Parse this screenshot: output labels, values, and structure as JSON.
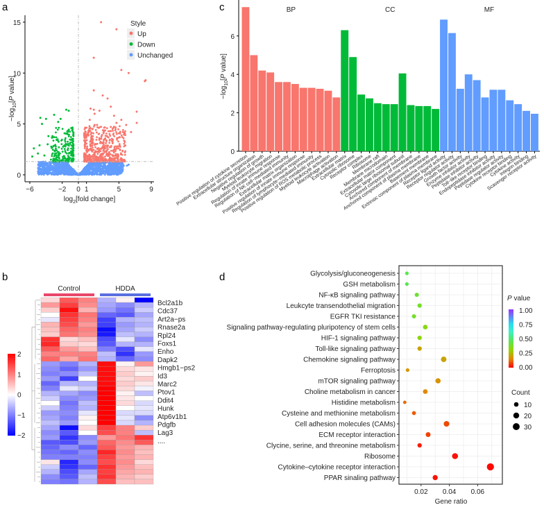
{
  "panels": {
    "a": "a",
    "b": "b",
    "c": "c",
    "d": "d"
  },
  "chart_data": [
    {
      "id": "volcano",
      "type": "scatter",
      "title": "",
      "xlabel": "log2[fold change]",
      "ylabel": "-log10[P value]",
      "xlim": [
        -6.5,
        9.5
      ],
      "ylim": [
        -0.5,
        15.8
      ],
      "xticks": [
        -6,
        -2,
        0,
        1,
        5,
        9
      ],
      "yticks": [
        0,
        5,
        10,
        15
      ],
      "threshold_y": 1.3,
      "legend": {
        "title": "Style",
        "position": "top-right",
        "entries": [
          {
            "label": "Up",
            "color": "#F8766D"
          },
          {
            "label": "Down",
            "color": "#00BA38"
          },
          {
            "label": "Unchanged",
            "color": "#619CFF"
          }
        ]
      },
      "highlight_points": {
        "Up": [
          [
            2.8,
            15.0
          ],
          [
            4.7,
            14.3
          ],
          [
            1.9,
            11.5
          ],
          [
            5.3,
            10.3
          ],
          [
            6.2,
            10.0
          ],
          [
            8.2,
            9.2
          ],
          [
            8.3,
            9.3
          ],
          [
            1.9,
            8.3
          ],
          [
            3.0,
            7.8
          ],
          [
            3.6,
            7.5
          ],
          [
            4.0,
            6.7
          ],
          [
            1.5,
            6.5
          ],
          [
            1.9,
            6.4
          ],
          [
            2.6,
            6.3
          ],
          [
            7.2,
            6.2
          ],
          [
            2.0,
            6.0
          ],
          [
            4.4,
            5.8
          ],
          [
            4.7,
            5.1
          ],
          [
            1.4,
            5.4
          ],
          [
            5.3,
            5.4
          ],
          [
            5.9,
            4.9
          ],
          [
            7.2,
            5.1
          ],
          [
            2.0,
            4.9
          ],
          [
            2.3,
            4.9
          ],
          [
            4.0,
            4.7
          ],
          [
            6.5,
            4.2
          ],
          [
            5.5,
            4.2
          ]
        ],
        "Down": [
          [
            -4.7,
            5.6
          ],
          [
            -3.0,
            5.9
          ],
          [
            -1.5,
            6.4
          ],
          [
            -1.2,
            6.3
          ],
          [
            -4.0,
            5.5
          ],
          [
            -4.5,
            5.0
          ],
          [
            -2.2,
            5.5
          ],
          [
            -2.5,
            5.2
          ],
          [
            -4.8,
            2.9
          ],
          [
            -5.5,
            2.6
          ],
          [
            -5.0,
            2.1
          ],
          [
            -5.7,
            1.8
          ],
          [
            -3.7,
            3.8
          ],
          [
            -3.8,
            3.0
          ],
          [
            -4.2,
            1.9
          ],
          [
            -3.2,
            3.8
          ]
        ],
        "Unchanged": [
          [
            5.6,
            0.9
          ],
          [
            6.2,
            1.0
          ],
          [
            6.0,
            0.9
          ],
          [
            5.2,
            0.7
          ]
        ]
      }
    },
    {
      "id": "heatmap",
      "type": "heatmap",
      "groups": [
        {
          "label": "Control",
          "color": "#E8476A"
        },
        {
          "label": "HDDA",
          "color": "#5B6EE0"
        }
      ],
      "samples_per_group": 3,
      "gene_labels": [
        "Bcl2a1b",
        "Cdc37",
        "Art2a−ps",
        "Rnase2a",
        "Rpl24",
        "Foxs1",
        "Enho",
        "Dapk2",
        "Hmgb1−ps2",
        "Id3",
        "Marc2",
        "Ptov1",
        "Ddit4",
        "Hunk",
        "Atp6v1b1",
        "Pdgfb",
        "Lag3",
        "...."
      ],
      "color_scale": {
        "min": -2,
        "max": 2,
        "ticks": [
          "2",
          "1",
          "0",
          "−1",
          "−2"
        ]
      },
      "values": [
        [
          0.3,
          1.3,
          1.0,
          -0.6,
          0.1,
          -2.0
        ],
        [
          0.8,
          1.5,
          0.9,
          -0.7,
          -0.9,
          -0.6
        ],
        [
          0.4,
          1.9,
          0.6,
          -0.8,
          -1.1,
          -0.4
        ],
        [
          0.0,
          1.6,
          1.1,
          -1.2,
          -1.3,
          -0.7
        ],
        [
          -0.2,
          1.5,
          1.0,
          -1.5,
          -0.6,
          -0.5
        ],
        [
          0.6,
          1.4,
          0.8,
          -1.5,
          -0.8,
          -0.6
        ],
        [
          0.5,
          1.2,
          1.0,
          -1.9,
          -0.7,
          -0.4
        ],
        [
          0.4,
          1.1,
          0.9,
          -1.8,
          -0.5,
          -0.6
        ],
        [
          1.6,
          0.3,
          0.5,
          -1.4,
          -0.2,
          -0.9
        ],
        [
          1.7,
          0.4,
          0.3,
          -1.3,
          -0.6,
          -0.6
        ],
        [
          1.3,
          0.8,
          0.5,
          -1.0,
          -1.4,
          -0.2
        ],
        [
          1.0,
          1.0,
          1.0,
          -0.5,
          -1.6,
          -0.8
        ],
        [
          1.2,
          0.7,
          1.1,
          -0.6,
          -1.2,
          -0.9
        ],
        [
          -0.8,
          -1.0,
          -0.6,
          1.9,
          0.1,
          0.8
        ],
        [
          -0.9,
          -1.2,
          -0.8,
          1.9,
          0.3,
          0.2
        ],
        [
          -1.0,
          -0.9,
          -0.5,
          1.9,
          0.4,
          0.1
        ],
        [
          -0.8,
          -1.5,
          0.0,
          1.9,
          0.3,
          0.4
        ],
        [
          -1.2,
          -0.6,
          -0.6,
          1.9,
          0.4,
          0.2
        ],
        [
          -1.0,
          -0.2,
          -0.4,
          2.0,
          0.3,
          -0.1
        ],
        [
          -0.6,
          -0.7,
          -0.9,
          2.0,
          0.1,
          -0.5
        ],
        [
          -0.4,
          -0.9,
          -0.8,
          2.0,
          0.2,
          0.0
        ],
        [
          0.0,
          -1.1,
          -0.5,
          2.0,
          0.3,
          -0.3
        ],
        [
          -0.4,
          -1.0,
          -0.6,
          2.0,
          0.0,
          -0.2
        ],
        [
          -0.8,
          -0.9,
          -0.2,
          2.0,
          -0.3,
          -0.3
        ],
        [
          -0.7,
          -1.0,
          0.1,
          2.0,
          -0.2,
          -0.9
        ],
        [
          -0.5,
          -0.8,
          0.0,
          2.0,
          -0.3,
          -0.6
        ],
        [
          -0.7,
          -1.9,
          0.3,
          1.5,
          1.0,
          0.4
        ],
        [
          -0.9,
          -1.3,
          0.0,
          1.4,
          1.0,
          -0.5
        ],
        [
          -0.8,
          -1.6,
          -0.9,
          0.8,
          1.1,
          1.6
        ],
        [
          -1.3,
          -1.4,
          -0.8,
          1.2,
          0.9,
          1.3
        ],
        [
          -1.2,
          -0.9,
          -1.2,
          1.3,
          0.8,
          0.6
        ],
        [
          -1.1,
          -1.2,
          -0.9,
          1.7,
          0.9,
          0.5
        ],
        [
          -1.0,
          -1.0,
          -1.0,
          1.5,
          0.8,
          0.6
        ],
        [
          0.2,
          -1.7,
          -0.9,
          1.4,
          0.9,
          0.3
        ],
        [
          -0.4,
          -1.6,
          -1.2,
          1.6,
          0.8,
          0.5
        ],
        [
          -0.6,
          -1.4,
          -0.7,
          1.5,
          0.7,
          0.6
        ],
        [
          -0.9,
          -1.3,
          -0.5,
          1.6,
          0.6,
          0.4
        ],
        [
          -1.0,
          -1.1,
          -0.6,
          1.4,
          0.5,
          0.5
        ]
      ]
    },
    {
      "id": "go-bar",
      "type": "bar",
      "ylabel": "-log10[P value]",
      "ylim": [
        0,
        7.8
      ],
      "yticks": [
        0,
        2,
        4,
        6
      ],
      "series": [
        {
          "name": "BP",
          "color": "#F8766D",
          "categories": [
            "Positive regulation of cytokine secretion",
            "Extracellular structure organization",
            "Negative regulation of growth",
            "Myeloid leukocyte migration",
            "Regulation of innate immune response",
            "Regulation of NK cell−mediated immunity",
            "Extracellular matrix organization",
            "Positive regulation of innate immune response",
            "Regulation of lymphocyte−mediated immunity",
            "Positive regulation of ROS metabolic process",
            "Myeloid leukocyte activation",
            "Macrophage activation"
          ],
          "values": [
            7.5,
            5.0,
            4.2,
            4.1,
            3.6,
            3.6,
            3.5,
            3.3,
            3.3,
            3.25,
            3.15,
            2.8
          ]
        },
        {
          "name": "CC",
          "color": "#00BA38",
          "categories": [
            "Extracellular matrix",
            "Cytosolic ribosome",
            "Receptor complex",
            "Ribosome",
            "Membrane raft",
            "Membrane microdomain",
            "Extracellular matrix component",
            "Cytosolic large ribosomal subunit",
            "Anchored component of membrane",
            "Anchored component of plasma membrane",
            "Basement membrane",
            "Extrinsic component of plasma membrane"
          ],
          "values": [
            6.3,
            4.9,
            2.95,
            2.75,
            2.5,
            2.45,
            2.45,
            4.05,
            2.4,
            2.35,
            2.35,
            2.2
          ]
        },
        {
          "name": "MF",
          "color": "#619CFF",
          "categories": [
            "Receptor ligand activity",
            "Receptor regulator activity",
            "Growth factor activity",
            "Enzyme inhibitor activity",
            "Peptidase inhibitor activity",
            "Toll−like receptor binding",
            "Endopeptidase inhibitor activity",
            "Peptidase regulator activity",
            "Cytokine receptor binding",
            "Cytokine activity",
            "Integrin binding",
            "Scavenger receptor activity"
          ],
          "values": [
            6.85,
            6.15,
            3.25,
            4.0,
            3.7,
            2.8,
            3.2,
            3.2,
            2.65,
            2.45,
            2.1,
            1.95
          ]
        }
      ]
    },
    {
      "id": "kegg-dot",
      "type": "scatter",
      "xlabel": "Gene ratio",
      "xlim": [
        0.006,
        0.0715
      ],
      "xticks": [
        "0.02",
        "0.04",
        "0.06"
      ],
      "legend_color": {
        "title": "P value",
        "ticks": [
          "1.00",
          "0.75",
          "0.50",
          "0.25",
          "0.00"
        ]
      },
      "legend_size": {
        "title": "Count",
        "ticks": [
          "10",
          "20",
          "30"
        ]
      },
      "pathways": [
        {
          "name": "Glycolysis/gluconeogenesis",
          "ratio": 0.01,
          "p": 0.45,
          "count": 5
        },
        {
          "name": "GSH metabolism",
          "ratio": 0.01,
          "p": 0.45,
          "count": 5
        },
        {
          "name": "NF-κB signaling pathway",
          "ratio": 0.017,
          "p": 0.4,
          "count": 8
        },
        {
          "name": "Leukcyte transendothelial migration",
          "ratio": 0.019,
          "p": 0.38,
          "count": 9
        },
        {
          "name": "EGFR TKI resistance",
          "ratio": 0.015,
          "p": 0.38,
          "count": 8
        },
        {
          "name": "Signaling pathway-regulating pluripotency of stem cells",
          "ratio": 0.023,
          "p": 0.33,
          "count": 11
        },
        {
          "name": "HIF-1 signaling pathway",
          "ratio": 0.019,
          "p": 0.32,
          "count": 9
        },
        {
          "name": "Toll-like signaling pathway",
          "ratio": 0.019,
          "p": 0.2,
          "count": 9
        },
        {
          "name": "Chemokine signaling pathway",
          "ratio": 0.036,
          "p": 0.2,
          "count": 17
        },
        {
          "name": "Ferroptosis",
          "ratio": 0.0105,
          "p": 0.18,
          "count": 5
        },
        {
          "name": "mTOR signaling pathway",
          "ratio": 0.032,
          "p": 0.17,
          "count": 15
        },
        {
          "name": "Choline metabolism in cancer",
          "ratio": 0.023,
          "p": 0.15,
          "count": 11
        },
        {
          "name": "Histidine metabolism",
          "ratio": 0.0085,
          "p": 0.12,
          "count": 4
        },
        {
          "name": "Cysteine and methionine metabolism",
          "ratio": 0.015,
          "p": 0.1,
          "count": 7
        },
        {
          "name": "Cell adhesion molecules (CAMs)",
          "ratio": 0.038,
          "p": 0.08,
          "count": 18
        },
        {
          "name": "ECM receptor interaction",
          "ratio": 0.025,
          "p": 0.07,
          "count": 12
        },
        {
          "name": "Clycine, serine, and threonine metabolism",
          "ratio": 0.019,
          "p": 0.03,
          "count": 9
        },
        {
          "name": "Ribosome",
          "ratio": 0.044,
          "p": 0.02,
          "count": 21
        },
        {
          "name": "Cytokine–cytokine receptor interaction",
          "ratio": 0.069,
          "p": 0.01,
          "count": 33
        },
        {
          "name": "PPAR sinaling pathway",
          "ratio": 0.03,
          "p": 0.02,
          "count": 14
        }
      ]
    }
  ]
}
